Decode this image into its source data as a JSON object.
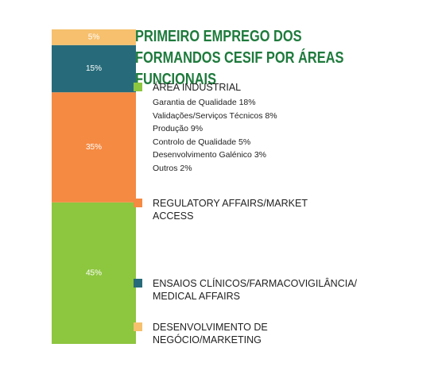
{
  "chart_data": {
    "type": "stacked-bar",
    "title": "PRIMEIRO EMPREGO DOS FORMANDOS CESIF POR ÁREAS FUNCIONAIS",
    "ylim": [
      0,
      100
    ],
    "series": [
      {
        "name": "ÁREA INDUSTRIAL",
        "color": "#8dc63f",
        "values": [
          45
        ],
        "value_labels": [
          "45%"
        ],
        "details": [
          "Garantia de Qualidade 18%",
          "Validações/Serviços Técnicos 8%",
          "Produção 9%",
          "Controlo de Qualidade 5%",
          "Desenvolvimento Galénico 3%",
          "Outros 2%"
        ]
      },
      {
        "name": "REGULATORY AFFAIRS/MARKET ACCESS",
        "color": "#f58a42",
        "values": [
          35
        ],
        "value_labels": [
          "35%"
        ]
      },
      {
        "name": "ENSAIOS CLÍNICOS/FARMACOVIGILÂNCIA/ MEDICAL AFFAIRS",
        "color": "#276b7a",
        "values": [
          15
        ],
        "value_labels": [
          "15%"
        ]
      },
      {
        "name": "DESENVOLVIMENTO DE NEGÓCIO/MARKETING",
        "color": "#f6c06e",
        "values": [
          5
        ],
        "value_labels": [
          "5%"
        ]
      }
    ]
  }
}
